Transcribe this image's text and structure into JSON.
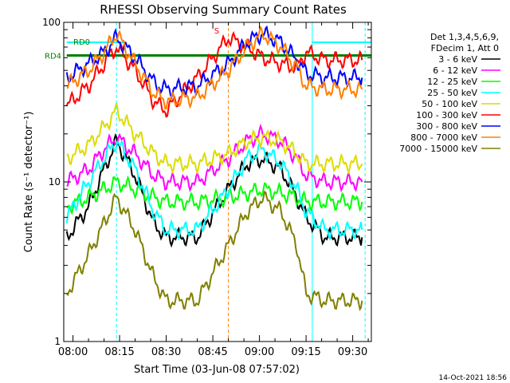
{
  "chart_data": {
    "type": "line",
    "title": "RHESSI Observing Summary Count Rates",
    "xlabel": "Start Time (03-Jun-08 07:57:02)",
    "ylabel": "Count Rate (s⁻¹ detector⁻¹)",
    "y_scale": "log",
    "ylim": [
      1,
      100
    ],
    "xlim": [
      "07:57:02",
      "09:36:00"
    ],
    "x_ticks": [
      "08:00",
      "08:15",
      "08:30",
      "08:45",
      "09:00",
      "09:15",
      "09:30"
    ],
    "y_ticks": [
      "1",
      "10",
      "100"
    ],
    "legend_header": [
      "Det 1,3,4,5,6,9,",
      "FDecim 1, Att 0"
    ],
    "legend_position": "right",
    "series": [
      {
        "name": "3 - 6 keV",
        "color": "#000000",
        "x": [
          "07:58",
          "08:05",
          "08:10",
          "08:14",
          "08:20",
          "08:26",
          "08:30",
          "08:40",
          "08:50",
          "08:56",
          "09:01",
          "09:07",
          "09:12",
          "09:15",
          "09:21",
          "09:30",
          "09:33"
        ],
        "y": [
          4.5,
          7,
          12,
          18,
          11,
          5.5,
          4.5,
          4.5,
          9,
          13,
          14,
          12,
          8,
          6,
          4.5,
          4.5,
          4.5
        ]
      },
      {
        "name": "6 - 12 keV",
        "color": "#ff00ff",
        "x": [
          "07:58",
          "08:05",
          "08:10",
          "08:14",
          "08:20",
          "08:26",
          "08:30",
          "08:40",
          "08:50",
          "08:56",
          "09:01",
          "09:07",
          "09:12",
          "09:15",
          "09:21",
          "09:30",
          "09:33"
        ],
        "y": [
          10,
          12,
          16,
          19,
          15,
          11,
          10,
          10,
          14,
          18,
          20,
          18,
          14,
          11,
          10,
          10,
          10
        ]
      },
      {
        "name": "12 - 25 keV",
        "color": "#00ff00",
        "x": [
          "07:58",
          "08:05",
          "08:10",
          "08:14",
          "08:20",
          "08:26",
          "08:30",
          "08:40",
          "08:50",
          "08:56",
          "09:01",
          "09:07",
          "09:12",
          "09:15",
          "09:21",
          "09:30",
          "09:33"
        ],
        "y": [
          7,
          8,
          9,
          10,
          9,
          8,
          7.5,
          7.5,
          8,
          8.5,
          9,
          8.5,
          8,
          7.5,
          7.5,
          7.5,
          7.5
        ]
      },
      {
        "name": "25 - 50 keV",
        "color": "#00ffff",
        "x": [
          "07:58",
          "08:05",
          "08:10",
          "08:14",
          "08:20",
          "08:26",
          "08:30",
          "08:40",
          "08:50",
          "08:56",
          "09:01",
          "09:07",
          "09:12",
          "09:15",
          "09:21",
          "09:30",
          "09:33"
        ],
        "y": [
          6,
          10,
          14,
          18,
          12,
          6.5,
          5,
          5,
          9,
          14,
          16,
          13,
          9,
          6.5,
          5,
          5,
          5
        ]
      },
      {
        "name": "50 - 100 keV",
        "color": "#dcdc00",
        "x": [
          "07:58",
          "08:05",
          "08:10",
          "08:14",
          "08:20",
          "08:26",
          "08:30",
          "08:40",
          "08:50",
          "08:56",
          "09:01",
          "09:07",
          "09:12",
          "09:15",
          "09:21",
          "09:30",
          "09:33"
        ],
        "y": [
          14,
          17,
          22,
          28,
          20,
          15,
          13,
          13,
          15,
          18,
          19,
          18,
          15,
          13,
          13,
          13,
          13
        ]
      },
      {
        "name": "100 - 300 keV",
        "color": "#ff0000",
        "x": [
          "07:58",
          "08:05",
          "08:10",
          "08:14",
          "08:20",
          "08:26",
          "08:30",
          "08:40",
          "08:45",
          "08:50",
          "08:56",
          "09:01",
          "09:07",
          "09:12",
          "09:15",
          "09:21",
          "09:30",
          "09:33"
        ],
        "y": [
          30,
          40,
          55,
          70,
          50,
          32,
          28,
          45,
          60,
          80,
          70,
          60,
          55,
          52,
          65,
          58,
          58,
          58
        ]
      },
      {
        "name": "300 - 800 keV",
        "color": "#0000ff",
        "x": [
          "07:58",
          "08:05",
          "08:10",
          "08:14",
          "08:20",
          "08:26",
          "08:30",
          "08:40",
          "08:50",
          "08:56",
          "09:01",
          "09:07",
          "09:12",
          "09:15",
          "09:21",
          "09:30",
          "09:33"
        ],
        "y": [
          45,
          55,
          65,
          80,
          60,
          42,
          38,
          40,
          55,
          75,
          85,
          75,
          58,
          48,
          45,
          45,
          45
        ]
      },
      {
        "name": "800 - 7000 keV",
        "color": "#ff8000",
        "x": [
          "07:58",
          "08:05",
          "08:10",
          "08:14",
          "08:20",
          "08:26",
          "08:30",
          "08:40",
          "08:50",
          "08:56",
          "09:01",
          "09:07",
          "09:12",
          "09:15",
          "09:21",
          "09:30",
          "09:33"
        ],
        "y": [
          40,
          50,
          65,
          85,
          55,
          36,
          32,
          34,
          50,
          70,
          85,
          70,
          52,
          40,
          38,
          38,
          38
        ]
      },
      {
        "name": "7000 - 15000 keV",
        "color": "#808000",
        "x": [
          "07:58",
          "08:05",
          "08:10",
          "08:14",
          "08:20",
          "08:26",
          "08:30",
          "08:40",
          "08:50",
          "08:56",
          "09:01",
          "09:07",
          "09:12",
          "09:15",
          "09:21",
          "09:30",
          "09:33"
        ],
        "y": [
          2,
          3.5,
          5.5,
          8,
          5,
          2.5,
          1.8,
          1.8,
          4,
          6.5,
          8,
          6.5,
          4,
          2,
          1.8,
          1.8,
          1.8
        ]
      }
    ],
    "annotations": [
      {
        "text": "RD0",
        "color": "#008000",
        "y": 75
      },
      {
        "text": "RD4",
        "color": "#008000",
        "y": 62
      },
      {
        "text": "S",
        "color": "#ff0000",
        "x": "08:48"
      }
    ],
    "vertical_markers": [
      {
        "x": "07:57",
        "color": "#00ffff",
        "style": "solid"
      },
      {
        "x": "08:14",
        "color": "#00ffff",
        "style": "dashed"
      },
      {
        "x": "08:50",
        "color": "#ff8000",
        "style": "dashed"
      },
      {
        "x": "09:17",
        "color": "#00ffff",
        "style": "solid"
      },
      {
        "x": "09:34",
        "color": "#00ffff",
        "style": "dashed"
      }
    ],
    "footer_timestamp": "14-Oct-2021 18:56"
  }
}
